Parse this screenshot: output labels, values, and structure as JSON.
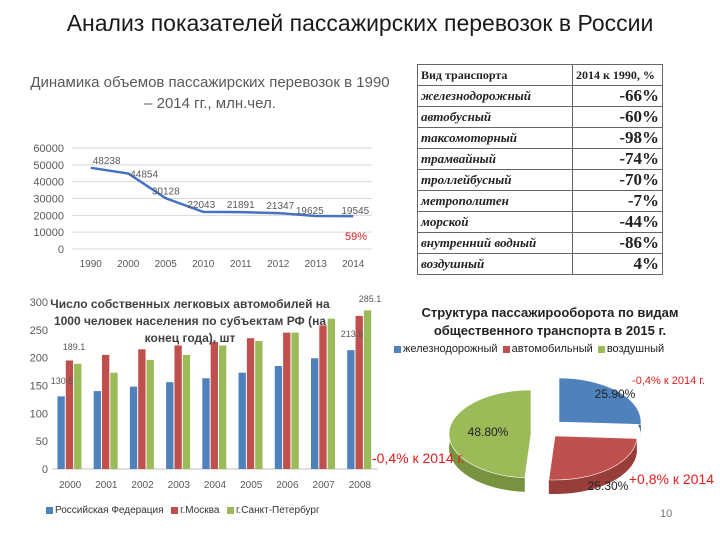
{
  "page": {
    "title": "Анализ показателей пассажирских перевозок в России",
    "page_number": "10",
    "overlay_note_2014": "-0,4% к 2014 г.",
    "overlay_note_pie_right": "+0,8% к 2014",
    "overlay_note_pie_top": "-0,4% к 2014 г."
  },
  "table": {
    "header": [
      "Вид транспорта",
      "2014 к 1990, %"
    ],
    "rows": [
      {
        "label": "железнодорожный",
        "value": "-66%"
      },
      {
        "label": "автобусный",
        "value": "-60%"
      },
      {
        "label": "таксомоторный",
        "value": "-98%"
      },
      {
        "label": "трамвайный",
        "value": "-74%"
      },
      {
        "label": "троллейбусный",
        "value": "-70%"
      },
      {
        "label": "метрополитен",
        "value": "-7%"
      },
      {
        "label": "морской",
        "value": "-44%"
      },
      {
        "label": "внутренний водный",
        "value": "-86%"
      },
      {
        "label": "воздушный",
        "value": "4%"
      }
    ]
  },
  "colors": {
    "line": "#4472c4",
    "russia": "#4f81bd",
    "moscow": "#c0504d",
    "spb": "#9bbb59",
    "red_note": "#e41c1c"
  },
  "chart_data": [
    {
      "type": "line",
      "title": "Динамика объемов пассажирских перевозок в 1990 – 2014 гг., млн.чел.",
      "x": [
        "1990",
        "2000",
        "2005",
        "2010",
        "2011",
        "2012",
        "2013",
        "2014"
      ],
      "y_tick_labels": [
        "0",
        "10000",
        "20000",
        "30000",
        "40000",
        "50000",
        "60000"
      ],
      "ylim": [
        0,
        60000
      ],
      "grid": true,
      "series": [
        {
          "values": [
            48238,
            44854,
            30128,
            22043,
            21891,
            21347,
            19625,
            19545
          ]
        }
      ],
      "data_labels": [
        "48238",
        "44854",
        "30128",
        "22043",
        "21891",
        "21347",
        "19625",
        "19545"
      ],
      "annotation": "59%"
    },
    {
      "type": "bar",
      "title": "Число собственных легковых автомобилей на 1000 человек населения по субъектам РФ (на конец года), шт",
      "categories": [
        "2000",
        "2001",
        "2002",
        "2003",
        "2004",
        "2005",
        "2006",
        "2007",
        "2008"
      ],
      "y_tick_labels": [
        "0",
        "50",
        "100",
        "150",
        "200",
        "250",
        "300"
      ],
      "ylim": [
        0,
        300
      ],
      "grid": false,
      "legend_position": "bottom",
      "series": [
        {
          "name": "Российская Федерация",
          "values": [
            130.5,
            140,
            148,
            156,
            163,
            173,
            185,
            199,
            213.5
          ]
        },
        {
          "name": "г.Москва",
          "values": [
            195,
            205,
            215,
            222,
            228,
            235,
            245,
            258,
            275
          ]
        },
        {
          "name": "г.Санкт-Петербург",
          "values": [
            189.1,
            173,
            196,
            205,
            222,
            230,
            245,
            270,
            285.1
          ]
        }
      ],
      "data_labels": [
        "130.5",
        "189.1",
        "213.5",
        "285.1"
      ]
    },
    {
      "type": "pie",
      "title": "Структура пассажирооборота по видам общественного транспорта в 2015 г.",
      "legend_position": "top",
      "categories": [
        "железнодорожный",
        "автомобильный",
        "воздушный"
      ],
      "values": [
        25.9,
        25.3,
        48.8
      ],
      "data_labels": [
        "25.90%",
        "25.30%",
        "48.80%"
      ]
    }
  ]
}
